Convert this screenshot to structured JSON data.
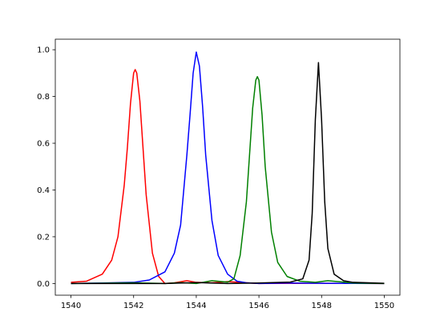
{
  "chart_data": {
    "type": "line",
    "xlim": [
      1539.5,
      1550.5
    ],
    "xticks": [
      1540,
      1542,
      1544,
      1546,
      1548,
      1550
    ],
    "ylim": [
      -0.05,
      1.045
    ],
    "yticks": [
      {
        "value": 0,
        "label": "0.0"
      },
      0.2,
      0.4,
      0.6,
      0.8,
      {
        "value": 1,
        "label": "1.0"
      }
    ],
    "series": [
      {
        "color": "#ff0000",
        "x": [
          1540,
          1540.5,
          1541,
          1541.3,
          1541.5,
          1541.7,
          1541.8,
          1541.9,
          1542,
          1542.05,
          1542.1,
          1542.2,
          1542.3,
          1542.4,
          1542.6,
          1542.8,
          1543,
          1543.3,
          1543.7,
          1544,
          1544.5,
          1545,
          1546,
          1548,
          1550
        ],
        "values": [
          0.005,
          0.01,
          0.04,
          0.1,
          0.2,
          0.42,
          0.58,
          0.77,
          0.9,
          0.915,
          0.9,
          0.78,
          0.58,
          0.38,
          0.13,
          0.03,
          0.0,
          0.003,
          0.012,
          0.005,
          0.003,
          0.008,
          0.0,
          0.001,
          0.0
        ]
      },
      {
        "color": "#0000ff",
        "x": [
          1540,
          1541,
          1542,
          1542.5,
          1543,
          1543.3,
          1543.5,
          1543.7,
          1543.8,
          1543.9,
          1544,
          1544.1,
          1544.2,
          1544.3,
          1544.5,
          1544.7,
          1545,
          1545.3,
          1545.6,
          1546,
          1547,
          1548,
          1550
        ],
        "values": [
          0.0,
          0.002,
          0.005,
          0.015,
          0.05,
          0.13,
          0.25,
          0.55,
          0.72,
          0.9,
          0.99,
          0.93,
          0.76,
          0.55,
          0.27,
          0.12,
          0.04,
          0.01,
          0.003,
          0.0,
          0.002,
          0.001,
          0.0
        ]
      },
      {
        "color": "#008000",
        "x": [
          1540,
          1542,
          1543,
          1543.5,
          1544,
          1544.5,
          1545,
          1545.2,
          1545.4,
          1545.6,
          1545.7,
          1545.8,
          1545.9,
          1545.95,
          1546,
          1546.1,
          1546.2,
          1546.4,
          1546.6,
          1546.9,
          1547.3,
          1547.8,
          1548.2,
          1549,
          1550
        ],
        "values": [
          0.0,
          0.003,
          0.0,
          0.004,
          0.0,
          0.012,
          0.006,
          0.02,
          0.12,
          0.35,
          0.55,
          0.75,
          0.87,
          0.885,
          0.87,
          0.72,
          0.5,
          0.22,
          0.09,
          0.03,
          0.01,
          0.005,
          0.012,
          0.002,
          0.0
        ]
      },
      {
        "color": "#000000",
        "x": [
          1540,
          1543,
          1544,
          1545,
          1546,
          1547,
          1547.4,
          1547.6,
          1547.7,
          1547.8,
          1547.9,
          1548,
          1548.1,
          1548.2,
          1548.4,
          1548.7,
          1549,
          1550
        ],
        "values": [
          0.0,
          0.0,
          0.004,
          0.0,
          0.002,
          0.006,
          0.02,
          0.1,
          0.3,
          0.7,
          0.945,
          0.7,
          0.35,
          0.15,
          0.04,
          0.012,
          0.005,
          0.001
        ]
      }
    ]
  }
}
